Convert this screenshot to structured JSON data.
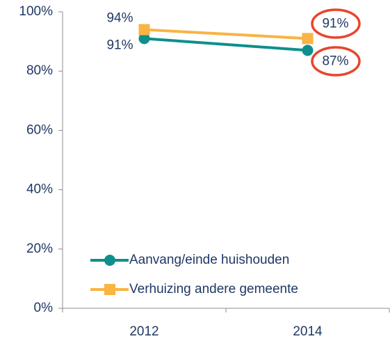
{
  "chart_data": {
    "type": "line",
    "categories": [
      "2012",
      "2014"
    ],
    "series": [
      {
        "name": "Aanvang/einde huishouden",
        "color": "#0e8f8c",
        "marker": "circle",
        "values": [
          91,
          87
        ],
        "value_labels": [
          "91%",
          "87%"
        ]
      },
      {
        "name": "Verhuizing andere gemeente",
        "color": "#f9b443",
        "marker": "square",
        "values": [
          94,
          91
        ],
        "value_labels": [
          "94%",
          "91%"
        ]
      }
    ],
    "ylim": [
      0,
      100
    ],
    "yticks": [
      {
        "value": 0,
        "label": "0%"
      },
      {
        "value": 20,
        "label": "20%"
      },
      {
        "value": 40,
        "label": "40%"
      },
      {
        "value": 60,
        "label": "60%"
      },
      {
        "value": 80,
        "label": "80%"
      },
      {
        "value": 100,
        "label": "100%"
      }
    ],
    "grid": false,
    "legend": "lower left"
  }
}
